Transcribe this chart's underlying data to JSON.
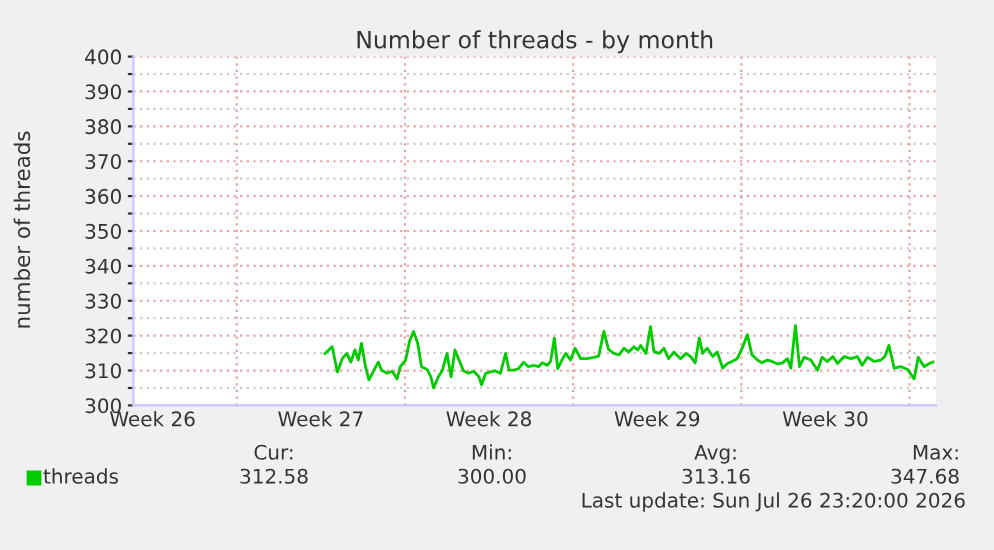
{
  "chart_data": {
    "type": "line",
    "title": "Number of threads - by month",
    "ylabel": "number of threads",
    "x": [
      "2026-07-01T16:05",
      "2026-07-01T23:17",
      "2026-07-02T04:34",
      "2026-07-02T09:22",
      "2026-07-02T13:55",
      "2026-07-02T18:00",
      "2026-07-02T22:05",
      "2026-07-03T01:26",
      "2026-07-03T04:34",
      "2026-07-03T08:38",
      "2026-07-03T12:00",
      "2026-07-03T16:34",
      "2026-07-03T21:22",
      "2026-07-04T00:43",
      "2026-07-04T06:00",
      "2026-07-04T11:17",
      "2026-07-04T16:05",
      "2026-07-04T19:26",
      "2026-07-05T00:43",
      "2026-07-05T04:34",
      "2026-07-05T08:38",
      "2026-07-05T12:43",
      "2026-07-05T16:34",
      "2026-07-05T22:05",
      "2026-07-06T01:55",
      "2026-07-06T04:34",
      "2026-07-06T09:22",
      "2026-07-06T13:26",
      "2026-07-06T18:00",
      "2026-07-06T22:05",
      "2026-07-07T01:55",
      "2026-07-07T06:00",
      "2026-07-07T10:34",
      "2026-07-07T15:22",
      "2026-07-07T20:38",
      "2026-07-08T01:55",
      "2026-07-08T04:34",
      "2026-07-08T08:38",
      "2026-07-08T13:26",
      "2026-07-08T18:00",
      "2026-07-08T23:17",
      "2026-07-09T04:34",
      "2026-07-09T07:55",
      "2026-07-09T12:43",
      "2026-07-09T17:17",
      "2026-07-09T22:34",
      "2026-07-10T03:22",
      "2026-07-10T08:38",
      "2026-07-10T13:26",
      "2026-07-10T17:17",
      "2026-07-10T22:05",
      "2026-07-11T01:26",
      "2026-07-11T05:17",
      "2026-07-11T08:38",
      "2026-07-11T12:43",
      "2026-07-11T16:34",
      "2026-07-11T21:22",
      "2026-07-12T01:55",
      "2026-07-12T07:26",
      "2026-07-12T13:55",
      "2026-07-12T20:38",
      "2026-07-13T01:26",
      "2026-07-13T06:43",
      "2026-07-13T11:17",
      "2026-07-13T16:34",
      "2026-07-13T22:05",
      "2026-07-14T02:38",
      "2026-07-14T07:26",
      "2026-07-14T12:43",
      "2026-07-14T16:34",
      "2026-07-14T19:26",
      "2026-07-15T00:43",
      "2026-07-15T05:17",
      "2026-07-15T08:38",
      "2026-07-15T13:55",
      "2026-07-15T18:43",
      "2026-07-15T23:17",
      "2026-07-16T04:34",
      "2026-07-16T11:17",
      "2026-07-16T16:34",
      "2026-07-16T21:22",
      "2026-07-17T01:55",
      "2026-07-17T06:00",
      "2026-07-17T09:22",
      "2026-07-17T13:55",
      "2026-07-17T19:26",
      "2026-07-18T00:00",
      "2026-07-18T05:17",
      "2026-07-18T10:05",
      "2026-07-18T14:38",
      "2026-07-18T19:55",
      "2026-07-19T01:26",
      "2026-07-19T06:00",
      "2026-07-19T10:34",
      "2026-07-19T16:05",
      "2026-07-19T20:38",
      "2026-07-20T01:55",
      "2026-07-20T06:43",
      "2026-07-20T12:00",
      "2026-07-20T17:17",
      "2026-07-20T22:05",
      "2026-07-21T01:26",
      "2026-07-21T06:00",
      "2026-07-21T10:05",
      "2026-07-21T14:38",
      "2026-07-21T21:22",
      "2026-07-22T04:05",
      "2026-07-22T08:38",
      "2026-07-22T13:55",
      "2026-07-22T19:26",
      "2026-07-23T00:00",
      "2026-07-23T06:43",
      "2026-07-23T13:26",
      "2026-07-23T19:55",
      "2026-07-24T00:43",
      "2026-07-24T06:00",
      "2026-07-24T12:43",
      "2026-07-24T19:26",
      "2026-07-24T23:17",
      "2026-07-25T03:22",
      "2026-07-25T08:38",
      "2026-07-25T15:22",
      "2026-07-25T22:05",
      "2026-07-26T04:34",
      "2026-07-26T08:38",
      "2026-07-26T14:38",
      "2026-07-26T19:26",
      "2026-07-26T23:17"
    ],
    "series": [
      {
        "name": "threads",
        "color": "#00cc00",
        "values": [
          314.9,
          316.8,
          309.6,
          313.4,
          314.9,
          312.4,
          315.9,
          313.0,
          317.8,
          311.1,
          307.3,
          309.8,
          312.4,
          310.1,
          309.2,
          309.8,
          307.6,
          311.1,
          313.0,
          318.4,
          321.2,
          317.8,
          311.1,
          310.3,
          308.2,
          305.0,
          308.2,
          310.1,
          314.9,
          308.2,
          315.9,
          313.0,
          309.9,
          309.2,
          309.8,
          308.2,
          305.9,
          309.2,
          309.6,
          309.9,
          309.2,
          314.9,
          310.1,
          310.1,
          310.5,
          312.4,
          311.1,
          311.5,
          311.1,
          312.2,
          311.5,
          312.6,
          319.3,
          310.5,
          313.0,
          314.9,
          313.0,
          316.4,
          313.4,
          313.4,
          313.8,
          314.1,
          321.2,
          316.1,
          314.9,
          314.5,
          316.4,
          315.3,
          316.8,
          315.9,
          317.2,
          314.9,
          322.6,
          315.5,
          314.9,
          316.4,
          313.4,
          315.3,
          313.4,
          314.9,
          314.0,
          312.2,
          319.3,
          314.9,
          316.4,
          314.0,
          315.3,
          310.7,
          312.0,
          312.6,
          313.4,
          316.8,
          320.3,
          314.5,
          313.0,
          312.2,
          313.0,
          312.6,
          311.9,
          312.2,
          313.4,
          310.7,
          322.9,
          311.1,
          313.8,
          313.0,
          310.1,
          313.8,
          312.6,
          314.0,
          312.0,
          314.0,
          313.4,
          314.0,
          311.5,
          313.8,
          312.6,
          313.0,
          314.0,
          317.2,
          310.7,
          311.1,
          310.3,
          307.6,
          313.8,
          311.1,
          312.0,
          312.4
        ]
      }
    ],
    "xlim": [
      "2026-06-23T16:48",
      "2026-07-27T02:24"
    ],
    "xticks": [
      {
        "value": "2026-06-24T12:00",
        "label": "Week 26"
      },
      {
        "value": "2026-06-28",
        "label": null
      },
      {
        "value": "2026-07-01T12:00",
        "label": "Week 27"
      },
      {
        "value": "2026-07-05",
        "label": null
      },
      {
        "value": "2026-07-08T12:00",
        "label": "Week 28"
      },
      {
        "value": "2026-07-12",
        "label": null
      },
      {
        "value": "2026-07-15T12:00",
        "label": "Week 29"
      },
      {
        "value": "2026-07-19",
        "label": null
      },
      {
        "value": "2026-07-22T12:00",
        "label": "Week 30"
      },
      {
        "value": "2026-07-26",
        "label": null
      }
    ],
    "ylim": [
      300,
      400
    ],
    "yticks": [
      300,
      {
        "value": 305,
        "label": null
      },
      310,
      {
        "value": 315,
        "label": null
      },
      320,
      {
        "value": 325,
        "label": null
      },
      330,
      {
        "value": 335,
        "label": null
      },
      340,
      {
        "value": 345,
        "label": null
      },
      350,
      {
        "value": 355,
        "label": null
      },
      360,
      {
        "value": 365,
        "label": null
      },
      370,
      {
        "value": 375,
        "label": null
      },
      380,
      {
        "value": 385,
        "label": null
      },
      390,
      {
        "value": 395,
        "label": null
      },
      400
    ],
    "grid": true,
    "legend": "bottom",
    "annotations": [
      "Cur:",
      "312.58",
      "Min:",
      "300.00",
      "Avg:",
      "313.16",
      "Max:",
      "347.68",
      "Last update: Sun Jul 26 23:20:00 2026"
    ]
  }
}
